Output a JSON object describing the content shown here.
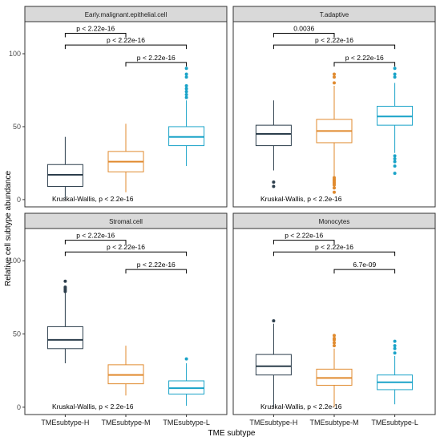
{
  "figure": {
    "ylabel": "Relative cell subtype abundance",
    "xlabel": "TME subtype",
    "categories": [
      "TMEsubtype-H",
      "TMEsubtype-M",
      "TMEsubtype-L"
    ],
    "colors": {
      "H": "#2c3e4c",
      "M": "#e08a2e",
      "L": "#1aa3c8",
      "strip": "#d9d9d9"
    },
    "yticks": [
      0,
      50,
      100
    ]
  },
  "chart_data": [
    {
      "type": "box",
      "panel": "Early.malignant.epithelial.cell",
      "ylim": [
        -5,
        122
      ],
      "boxes": [
        {
          "category": "TMEsubtype-H",
          "whisker_low": 0,
          "q1": 9,
          "median": 17,
          "q3": 24,
          "whisker_high": 43,
          "outliers": []
        },
        {
          "category": "TMEsubtype-M",
          "whisker_low": 5,
          "q1": 19,
          "median": 26,
          "q3": 33,
          "whisker_high": 52,
          "outliers": []
        },
        {
          "category": "TMEsubtype-L",
          "whisker_low": 23,
          "q1": 37,
          "median": 43,
          "q3": 50,
          "whisker_high": 68,
          "outliers": [
            70,
            72,
            74,
            76,
            78,
            84,
            86,
            90
          ]
        }
      ],
      "comparisons": [
        {
          "label": "p < 2.22e-16",
          "from": "TMEsubtype-H",
          "to": "TMEsubtype-M",
          "y": 114
        },
        {
          "label": "p < 2.22e-16",
          "from": "TMEsubtype-H",
          "to": "TMEsubtype-L",
          "y": 106
        },
        {
          "label": "p < 2.22e-16",
          "from": "TMEsubtype-M",
          "to": "TMEsubtype-L",
          "y": 94
        }
      ],
      "test_label": "Kruskal-Wallis, p < 2.2e-16"
    },
    {
      "type": "box",
      "panel": "T.adaptive",
      "ylim": [
        -5,
        122
      ],
      "boxes": [
        {
          "category": "TMEsubtype-H",
          "whisker_low": 20,
          "q1": 37,
          "median": 45,
          "q3": 51,
          "whisker_high": 68,
          "outliers": [
            9,
            12
          ]
        },
        {
          "category": "TMEsubtype-M",
          "whisker_low": 16,
          "q1": 39,
          "median": 47,
          "q3": 55,
          "whisker_high": 78,
          "outliers": [
            5,
            8,
            10,
            11,
            12,
            13,
            14,
            15,
            80,
            84,
            86
          ]
        },
        {
          "category": "TMEsubtype-L",
          "whisker_low": 32,
          "q1": 51,
          "median": 57,
          "q3": 64,
          "whisker_high": 80,
          "outliers": [
            18,
            23,
            26,
            28,
            30,
            84,
            86,
            90
          ]
        }
      ],
      "comparisons": [
        {
          "label": "0.0036",
          "from": "TMEsubtype-H",
          "to": "TMEsubtype-M",
          "y": 114
        },
        {
          "label": "p < 2.22e-16",
          "from": "TMEsubtype-H",
          "to": "TMEsubtype-L",
          "y": 106
        },
        {
          "label": "p < 2.22e-16",
          "from": "TMEsubtype-M",
          "to": "TMEsubtype-L",
          "y": 94
        }
      ],
      "test_label": "Kruskal-Wallis, p < 2.2e-16"
    },
    {
      "type": "box",
      "panel": "Stromal.cell",
      "ylim": [
        -5,
        122
      ],
      "boxes": [
        {
          "category": "TMEsubtype-H",
          "whisker_low": 30,
          "q1": 40,
          "median": 46,
          "q3": 55,
          "whisker_high": 78,
          "outliers": [
            79,
            80,
            81,
            82,
            86
          ]
        },
        {
          "category": "TMEsubtype-M",
          "whisker_low": 8,
          "q1": 16,
          "median": 22,
          "q3": 29,
          "whisker_high": 42,
          "outliers": []
        },
        {
          "category": "TMEsubtype-L",
          "whisker_low": 1,
          "q1": 9,
          "median": 13,
          "q3": 18,
          "whisker_high": 30,
          "outliers": [
            33
          ]
        }
      ],
      "comparisons": [
        {
          "label": "p < 2.22e-16",
          "from": "TMEsubtype-H",
          "to": "TMEsubtype-M",
          "y": 114
        },
        {
          "label": "p < 2.22e-16",
          "from": "TMEsubtype-H",
          "to": "TMEsubtype-L",
          "y": 106
        },
        {
          "label": "p < 2.22e-16",
          "from": "TMEsubtype-M",
          "to": "TMEsubtype-L",
          "y": 94
        }
      ],
      "test_label": "Kruskal-Wallis, p < 2.2e-16"
    },
    {
      "type": "box",
      "panel": "Monocytes",
      "ylim": [
        -5,
        122
      ],
      "boxes": [
        {
          "category": "TMEsubtype-H",
          "whisker_low": 0,
          "q1": 22,
          "median": 28,
          "q3": 36,
          "whisker_high": 57,
          "outliers": [
            59
          ]
        },
        {
          "category": "TMEsubtype-M",
          "whisker_low": 0,
          "q1": 15,
          "median": 20,
          "q3": 26,
          "whisker_high": 40,
          "outliers": [
            42,
            44,
            46,
            47,
            49
          ]
        },
        {
          "category": "TMEsubtype-L",
          "whisker_low": 2,
          "q1": 12,
          "median": 17,
          "q3": 22,
          "whisker_high": 35,
          "outliers": [
            37,
            40,
            42,
            45
          ]
        }
      ],
      "comparisons": [
        {
          "label": "p < 2.22e-16",
          "from": "TMEsubtype-H",
          "to": "TMEsubtype-M",
          "y": 114
        },
        {
          "label": "p < 2.22e-16",
          "from": "TMEsubtype-H",
          "to": "TMEsubtype-L",
          "y": 106
        },
        {
          "label": "6.7e-09",
          "from": "TMEsubtype-M",
          "to": "TMEsubtype-L",
          "y": 94
        }
      ],
      "test_label": "Kruskal-Wallis, p < 2.2e-16"
    }
  ]
}
